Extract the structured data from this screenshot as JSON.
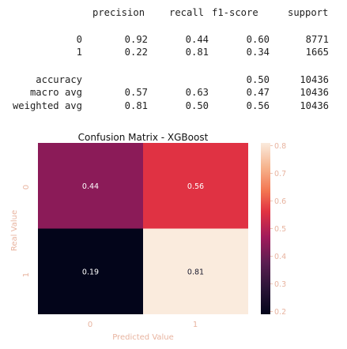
{
  "report": {
    "headers": [
      "precision",
      "recall",
      "f1-score",
      "support"
    ],
    "rows": [
      {
        "label": "0",
        "precision": "0.92",
        "recall": "0.44",
        "f1": "0.60",
        "support": "8771"
      },
      {
        "label": "1",
        "precision": "0.22",
        "recall": "0.81",
        "f1": "0.34",
        "support": "1665"
      },
      {
        "label": "accuracy",
        "precision": "",
        "recall": "",
        "f1": "0.50",
        "support": "10436"
      },
      {
        "label": "macro avg",
        "precision": "0.57",
        "recall": "0.63",
        "f1": "0.47",
        "support": "10436"
      },
      {
        "label": "weighted avg",
        "precision": "0.81",
        "recall": "0.50",
        "f1": "0.56",
        "support": "10436"
      }
    ]
  },
  "chart_data": {
    "type": "heatmap",
    "title": "Confusion Matrix - XGBoost",
    "xlabel": "Predicted Value",
    "ylabel": "Real Value",
    "x_categories": [
      "0",
      "1"
    ],
    "y_categories": [
      "0",
      "1"
    ],
    "values": [
      [
        0.44,
        0.56
      ],
      [
        0.19,
        0.81
      ]
    ],
    "annotations": [
      [
        "0.44",
        "0.56"
      ],
      [
        "0.19",
        "0.81"
      ]
    ],
    "colorbar": {
      "min": 0.19,
      "max": 0.81,
      "ticks": [
        "0.2",
        "0.3",
        "0.4",
        "0.5",
        "0.6",
        "0.7",
        "0.8"
      ]
    },
    "colormap": "rocket",
    "colors": {
      "label_text": "#e8b4a0",
      "title_text": "#111111",
      "cell_text_light": "#ffffff",
      "cell_text_dark": "#1a1a2e"
    }
  }
}
